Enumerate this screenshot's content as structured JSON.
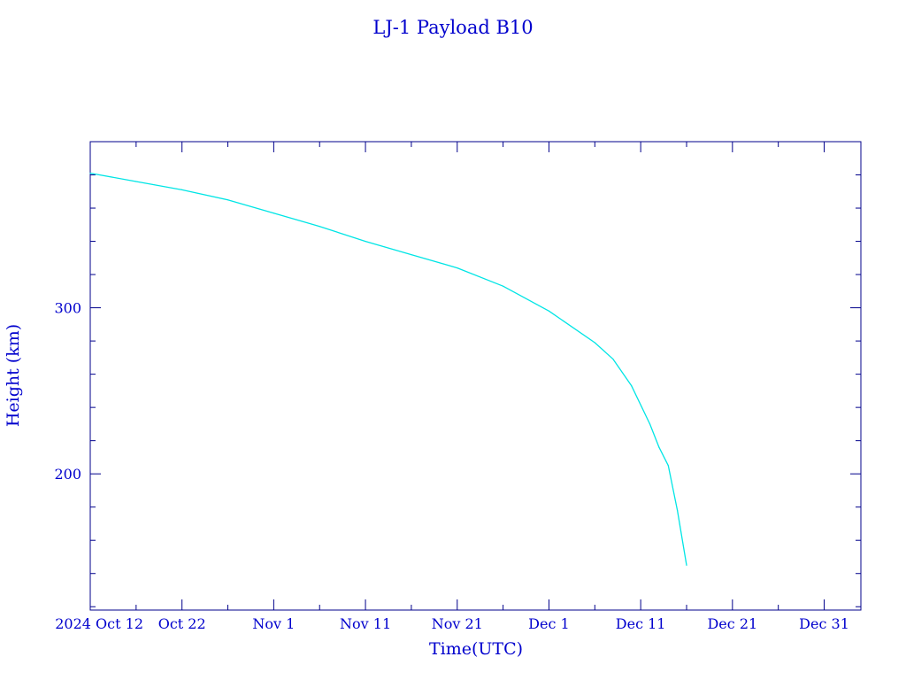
{
  "colors": {
    "axis": "#00008b",
    "text": "#0000cd",
    "series": "#00e5e5",
    "background": "#ffffff"
  },
  "chart_data": {
    "type": "line",
    "title": "LJ-1 Payload B10",
    "xlabel": "Time(UTC)",
    "ylabel": "Height (km)",
    "x_tick_labels": [
      "2024 Oct 12",
      "Oct 22",
      "Nov  1",
      "Nov 11",
      "Nov 21",
      "Dec  1",
      "Dec 11",
      "Dec 21",
      "Dec 31"
    ],
    "x_tick_dates": [
      "2024-10-12",
      "2024-10-22",
      "2024-11-01",
      "2024-11-11",
      "2024-11-21",
      "2024-12-01",
      "2024-12-11",
      "2024-12-21",
      "2024-12-31"
    ],
    "xlim": [
      "2024-10-12",
      "2025-01-04"
    ],
    "y_tick_labels": [
      "200",
      "300"
    ],
    "y_tick_values": [
      200,
      300
    ],
    "ylim": [
      118,
      400
    ],
    "grid": false,
    "series": [
      {
        "x": [
          "2024-10-12",
          "2024-10-17",
          "2024-10-22",
          "2024-10-27",
          "2024-11-01",
          "2024-11-06",
          "2024-11-11",
          "2024-11-16",
          "2024-11-21",
          "2024-11-26",
          "2024-12-01",
          "2024-12-06",
          "2024-12-08",
          "2024-12-10",
          "2024-12-12",
          "2024-12-13",
          "2024-12-14",
          "2024-12-15",
          "2024-12-16"
        ],
        "y": [
          381,
          376,
          371,
          365,
          357,
          349,
          340,
          332,
          324,
          313,
          298,
          279,
          269,
          253,
          230,
          216,
          205,
          178,
          145
        ]
      }
    ]
  }
}
